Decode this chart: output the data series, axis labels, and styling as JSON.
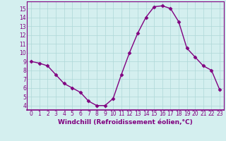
{
  "x": [
    0,
    1,
    2,
    3,
    4,
    5,
    6,
    7,
    8,
    9,
    10,
    11,
    12,
    13,
    14,
    15,
    16,
    17,
    18,
    19,
    20,
    21,
    22,
    23
  ],
  "y": [
    9,
    8.8,
    8.5,
    7.5,
    6.5,
    6.0,
    5.5,
    4.5,
    4.0,
    4.0,
    4.8,
    7.5,
    10.0,
    12.2,
    14.0,
    15.2,
    15.3,
    15.0,
    13.5,
    10.5,
    9.5,
    8.5,
    8.0,
    5.8
  ],
  "line_color": "#800080",
  "marker": "D",
  "marker_size": 2.5,
  "bg_color": "#d4efef",
  "grid_color": "#aed8d8",
  "xlabel": "Windchill (Refroidissement éolien,°C)",
  "xlim": [
    -0.5,
    23.5
  ],
  "ylim": [
    3.5,
    15.8
  ],
  "yticks": [
    4,
    5,
    6,
    7,
    8,
    9,
    10,
    11,
    12,
    13,
    14,
    15
  ],
  "xticks": [
    0,
    1,
    2,
    3,
    4,
    5,
    6,
    7,
    8,
    9,
    10,
    11,
    12,
    13,
    14,
    15,
    16,
    17,
    18,
    19,
    20,
    21,
    22,
    23
  ],
  "tick_color": "#800080",
  "tick_fontsize": 5.5,
  "xlabel_fontsize": 6.5,
  "linewidth": 1.0,
  "spine_color": "#800080"
}
